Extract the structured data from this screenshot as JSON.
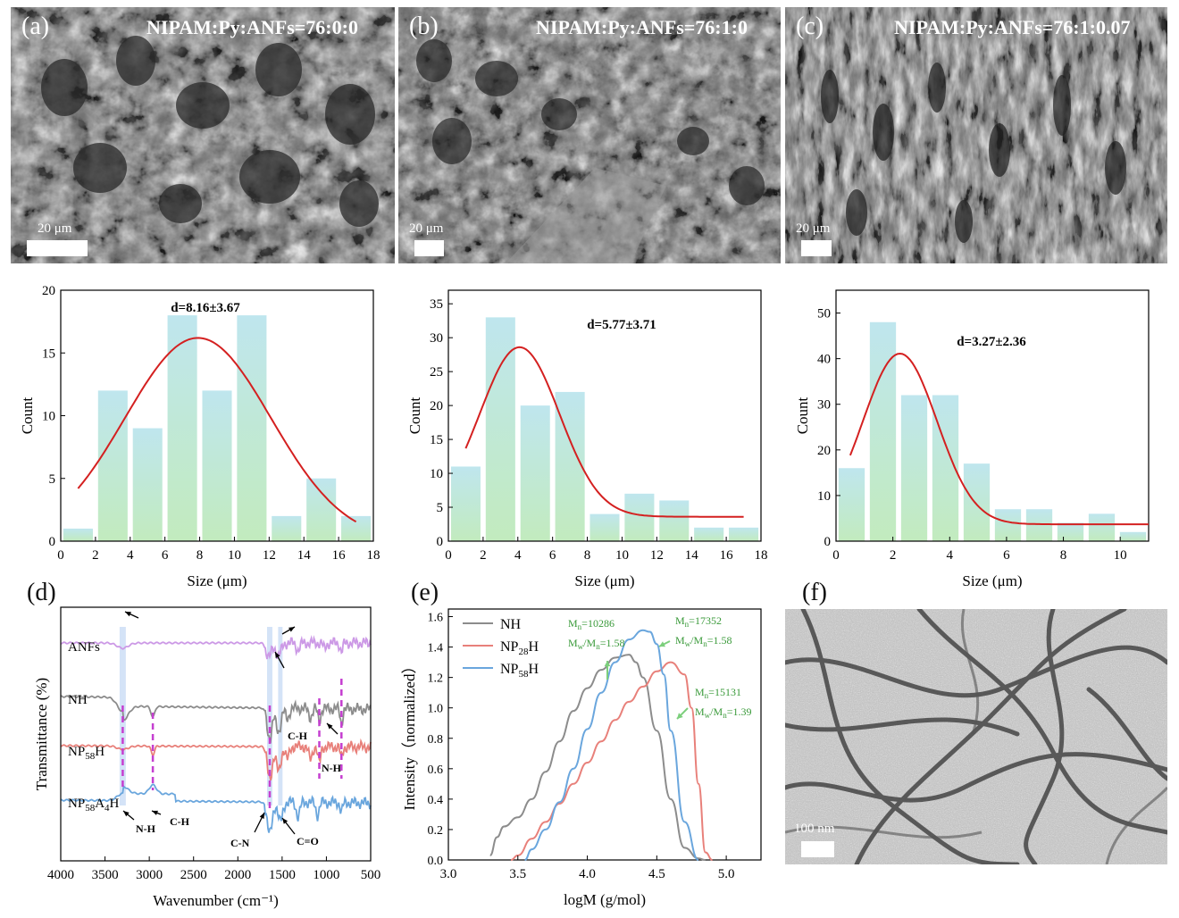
{
  "panels": {
    "a": {
      "label": "(a)",
      "title": "NIPAM:Py:ANFs=76:0:0",
      "scale": "20 μm"
    },
    "b": {
      "label": "(b)",
      "title": "NIPAM:Py:ANFs=76:1:0",
      "scale": "20 μm"
    },
    "c": {
      "label": "(c)",
      "title": "NIPAM:Py:ANFs=76:1:0.07",
      "scale": "20 μm"
    },
    "d": {
      "label": "(d)"
    },
    "e": {
      "label": "(e)"
    },
    "f": {
      "label": "(f)",
      "scale": "100 nm"
    }
  },
  "colors": {
    "bar_top": "#bfe6ee",
    "bar_bottom": "#bfeab9",
    "fit": "#d42020",
    "grey": "#8c8c8c",
    "red": "#e8807a",
    "blue": "#6aa6dd",
    "purple": "#cc99e6",
    "green": "#3a9a3a",
    "dash": "#c53fd0",
    "band": "#c9dcf5"
  },
  "chart_data": [
    {
      "id": "hist-a",
      "type": "bar",
      "title": "d=8.16±3.67",
      "xlabel": "Size (μm)",
      "ylabel": "Count",
      "xlim": [
        0,
        18
      ],
      "ylim": [
        0,
        20
      ],
      "xticks": [
        "0",
        "2",
        "4",
        "6",
        "8",
        "10",
        "12",
        "14",
        "16",
        "18"
      ],
      "yticks": [
        "0",
        "5",
        "10",
        "15",
        "20"
      ],
      "bin_centers": [
        1,
        3,
        5,
        7,
        9,
        11,
        13,
        15,
        17
      ],
      "bin_width": 1.7,
      "values": [
        1,
        12,
        9,
        18,
        12,
        18,
        2,
        5,
        2
      ],
      "fit": {
        "type": "gaussian",
        "mean": 7.9,
        "sigma": 4.2,
        "peak": 16.2,
        "offset": 0,
        "x_range": [
          1,
          17
        ]
      }
    },
    {
      "id": "hist-b",
      "type": "bar",
      "title": "d=5.77±3.71",
      "xlabel": "Size (μm)",
      "ylabel": "Count",
      "xlim": [
        0,
        18
      ],
      "ylim": [
        0,
        37
      ],
      "xticks": [
        "0",
        "2",
        "4",
        "6",
        "8",
        "10",
        "12",
        "14",
        "16",
        "18"
      ],
      "yticks": [
        "0",
        "5",
        "10",
        "15",
        "20",
        "25",
        "30",
        "35"
      ],
      "bin_centers": [
        1,
        3,
        5,
        7,
        9,
        11,
        13,
        15,
        17
      ],
      "bin_width": 1.7,
      "values": [
        11,
        33,
        20,
        22,
        4,
        7,
        6,
        2,
        2
      ],
      "fit": {
        "type": "gaussian",
        "mean": 4.1,
        "sigma": 2.3,
        "peak": 25,
        "offset": 3.6,
        "x_range": [
          1,
          17
        ]
      }
    },
    {
      "id": "hist-c",
      "type": "bar",
      "title": "d=3.27±2.36",
      "xlabel": "Size (μm)",
      "ylabel": "Count",
      "xlim": [
        0,
        11
      ],
      "ylim": [
        0,
        55
      ],
      "xticks": [
        "0",
        "2",
        "4",
        "6",
        "8",
        "10"
      ],
      "yticks": [
        "0",
        "10",
        "20",
        "30",
        "40",
        "50"
      ],
      "bin_centers": [
        0.55,
        1.65,
        2.75,
        3.85,
        4.95,
        6.05,
        7.15,
        8.25,
        9.35,
        10.45
      ],
      "bin_width": 0.92,
      "values": [
        16,
        48,
        32,
        32,
        17,
        7,
        7,
        4,
        6,
        2
      ],
      "fit": {
        "type": "gaussian",
        "mean": 2.25,
        "sigma": 1.3,
        "peak": 37.4,
        "offset": 3.7,
        "x_range": [
          0.5,
          11
        ]
      }
    },
    {
      "id": "ftir",
      "type": "line",
      "xlabel": "Wavenumber (cm⁻¹)",
      "ylabel": "Transmittance (%)",
      "xlim": [
        4000,
        500
      ],
      "xticks": [
        "4000",
        "3500",
        "3000",
        "2500",
        "2000",
        "1500",
        "1000",
        "500"
      ],
      "series": [
        {
          "name": "ANFs",
          "name_main": "ANFs",
          "name_sub": "",
          "name_tail": "",
          "color": "purple"
        },
        {
          "name": "NH",
          "name_main": "NH",
          "name_sub": "",
          "name_tail": "",
          "color": "grey"
        },
        {
          "name": "NP58H",
          "name_main": "NP",
          "name_sub": "58",
          "name_tail": "H",
          "color": "red"
        },
        {
          "name": "NP58A4H",
          "name_main": "NP",
          "name_sub": "58",
          "name_tail": "A",
          "name_sub2": "4",
          "name_tail2": "H",
          "color": "blue"
        }
      ],
      "bands": [
        3300,
        1640,
        1520
      ],
      "dashed_lines": [
        3300,
        2960,
        1640,
        1080,
        830
      ],
      "annotations": [
        "N-H",
        "C-H",
        "C-N",
        "C=O",
        "C-H",
        "N-H"
      ]
    },
    {
      "id": "gpc",
      "type": "line",
      "xlabel": "logM (g/mol)",
      "ylabel": "Intensity（normalized）",
      "xlim": [
        3.0,
        5.25
      ],
      "ylim": [
        0,
        1.65
      ],
      "xticks": [
        "3.0",
        "3.5",
        "4.0",
        "4.5",
        "5.0"
      ],
      "yticks": [
        "0.0",
        "0.2",
        "0.4",
        "0.6",
        "0.8",
        "1.0",
        "1.2",
        "1.4",
        "1.6"
      ],
      "series": [
        {
          "name": "NH",
          "name_main": "NH",
          "name_sub": "",
          "name_tail": "",
          "color": "grey",
          "x": [
            3.3,
            3.35,
            3.4,
            3.5,
            3.6,
            3.7,
            3.8,
            3.9,
            4.0,
            4.1,
            4.2,
            4.3,
            4.35,
            4.4,
            4.5,
            4.6,
            4.7,
            4.8,
            4.85
          ],
          "y": [
            0.03,
            0.15,
            0.22,
            0.28,
            0.4,
            0.58,
            0.78,
            0.98,
            1.13,
            1.25,
            1.33,
            1.35,
            1.3,
            1.2,
            0.85,
            0.4,
            0.08,
            0.01,
            0
          ]
        },
        {
          "name": "NP28H",
          "name_main": "NP",
          "name_sub": "28",
          "name_tail": "H",
          "color": "red",
          "x": [
            3.45,
            3.5,
            3.6,
            3.7,
            3.8,
            3.9,
            4.0,
            4.1,
            4.2,
            4.3,
            4.4,
            4.5,
            4.6,
            4.7,
            4.75,
            4.8,
            4.85,
            4.9
          ],
          "y": [
            0,
            0.03,
            0.14,
            0.25,
            0.37,
            0.5,
            0.64,
            0.78,
            0.92,
            1.04,
            1.14,
            1.24,
            1.3,
            1.22,
            1.0,
            0.5,
            0.05,
            0
          ]
        },
        {
          "name": "NP58H",
          "name_main": "NP",
          "name_sub": "58",
          "name_tail": "H",
          "color": "blue",
          "x": [
            3.55,
            3.6,
            3.7,
            3.8,
            3.9,
            4.0,
            4.1,
            4.2,
            4.3,
            4.4,
            4.45,
            4.5,
            4.55,
            4.6,
            4.7,
            4.8
          ],
          "y": [
            0,
            0.07,
            0.2,
            0.38,
            0.6,
            0.86,
            1.1,
            1.3,
            1.45,
            1.51,
            1.5,
            1.42,
            1.22,
            0.85,
            0.25,
            0
          ]
        }
      ],
      "annotations": [
        {
          "mn": "10286",
          "pdi": "1.58"
        },
        {
          "mn": "17352",
          "pdi": "1.58"
        },
        {
          "mn": "15131",
          "pdi": "1.39"
        }
      ]
    }
  ]
}
